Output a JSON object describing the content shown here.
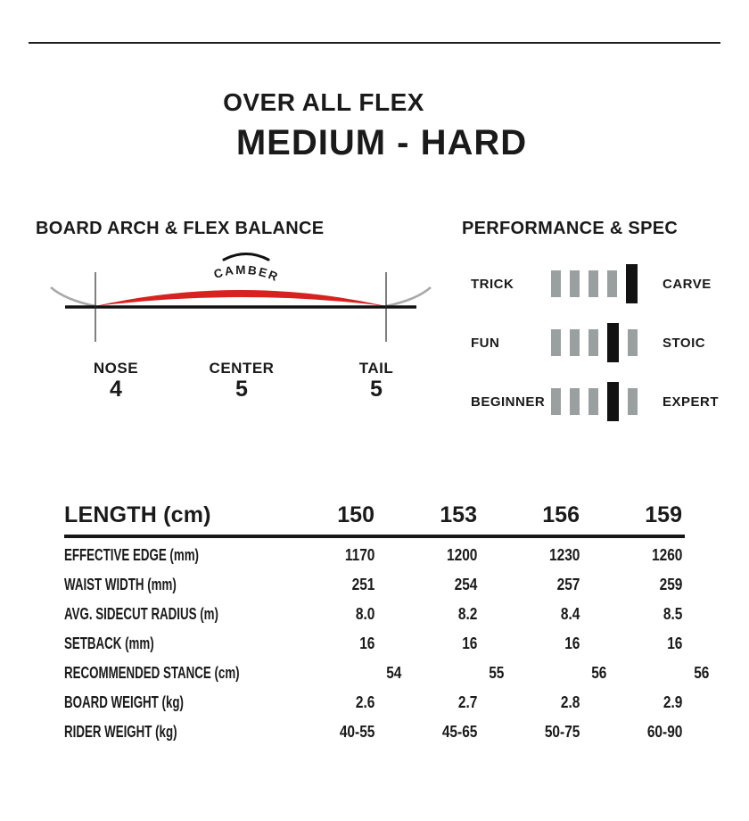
{
  "overall_flex": {
    "label": "OVER ALL FLEX",
    "value": "MEDIUM - HARD"
  },
  "arch_section": {
    "title": "BOARD ARCH & FLEX BALANCE",
    "camber_label": "CAMBER",
    "points": [
      {
        "label": "NOSE",
        "value": "4"
      },
      {
        "label": "CENTER",
        "value": "5"
      },
      {
        "label": "TAIL",
        "value": "5"
      }
    ],
    "colors": {
      "camber_red": "#d8221f",
      "tip_gray": "#a9a9a9"
    }
  },
  "performance_section": {
    "title": "PERFORMANCE & SPEC",
    "scale_max": 5,
    "rows": [
      {
        "left": "TRICK",
        "right": "CARVE",
        "position": 5
      },
      {
        "left": "FUN",
        "right": "STOIC",
        "position": 4
      },
      {
        "left": "BEGINNER",
        "right": "EXPERT",
        "position": 4
      }
    ],
    "colors": {
      "inactive": "#9aa0a0",
      "active": "#121212"
    }
  },
  "spec_table": {
    "header": {
      "label": "LENGTH (cm)",
      "values": [
        "150",
        "153",
        "156",
        "159"
      ]
    },
    "rows": [
      {
        "label": "EFFECTIVE EDGE (mm)",
        "values": [
          "1170",
          "1200",
          "1230",
          "1260"
        ]
      },
      {
        "label": "WAIST WIDTH (mm)",
        "values": [
          "251",
          "254",
          "257",
          "259"
        ]
      },
      {
        "label": "AVG. SIDECUT RADIUS (m)",
        "values": [
          "8.0",
          "8.2",
          "8.4",
          "8.5"
        ]
      },
      {
        "label": "SETBACK (mm)",
        "values": [
          "16",
          "16",
          "16",
          "16"
        ]
      },
      {
        "label": "RECOMMENDED STANCE (cm)",
        "values": [
          "54",
          "55",
          "56",
          "56"
        ]
      },
      {
        "label": "BOARD WEIGHT (kg)",
        "values": [
          "2.6",
          "2.7",
          "2.8",
          "2.9"
        ]
      },
      {
        "label": "RIDER WEIGHT (kg)",
        "values": [
          "40-55",
          "45-65",
          "50-75",
          "60-90"
        ]
      }
    ]
  }
}
